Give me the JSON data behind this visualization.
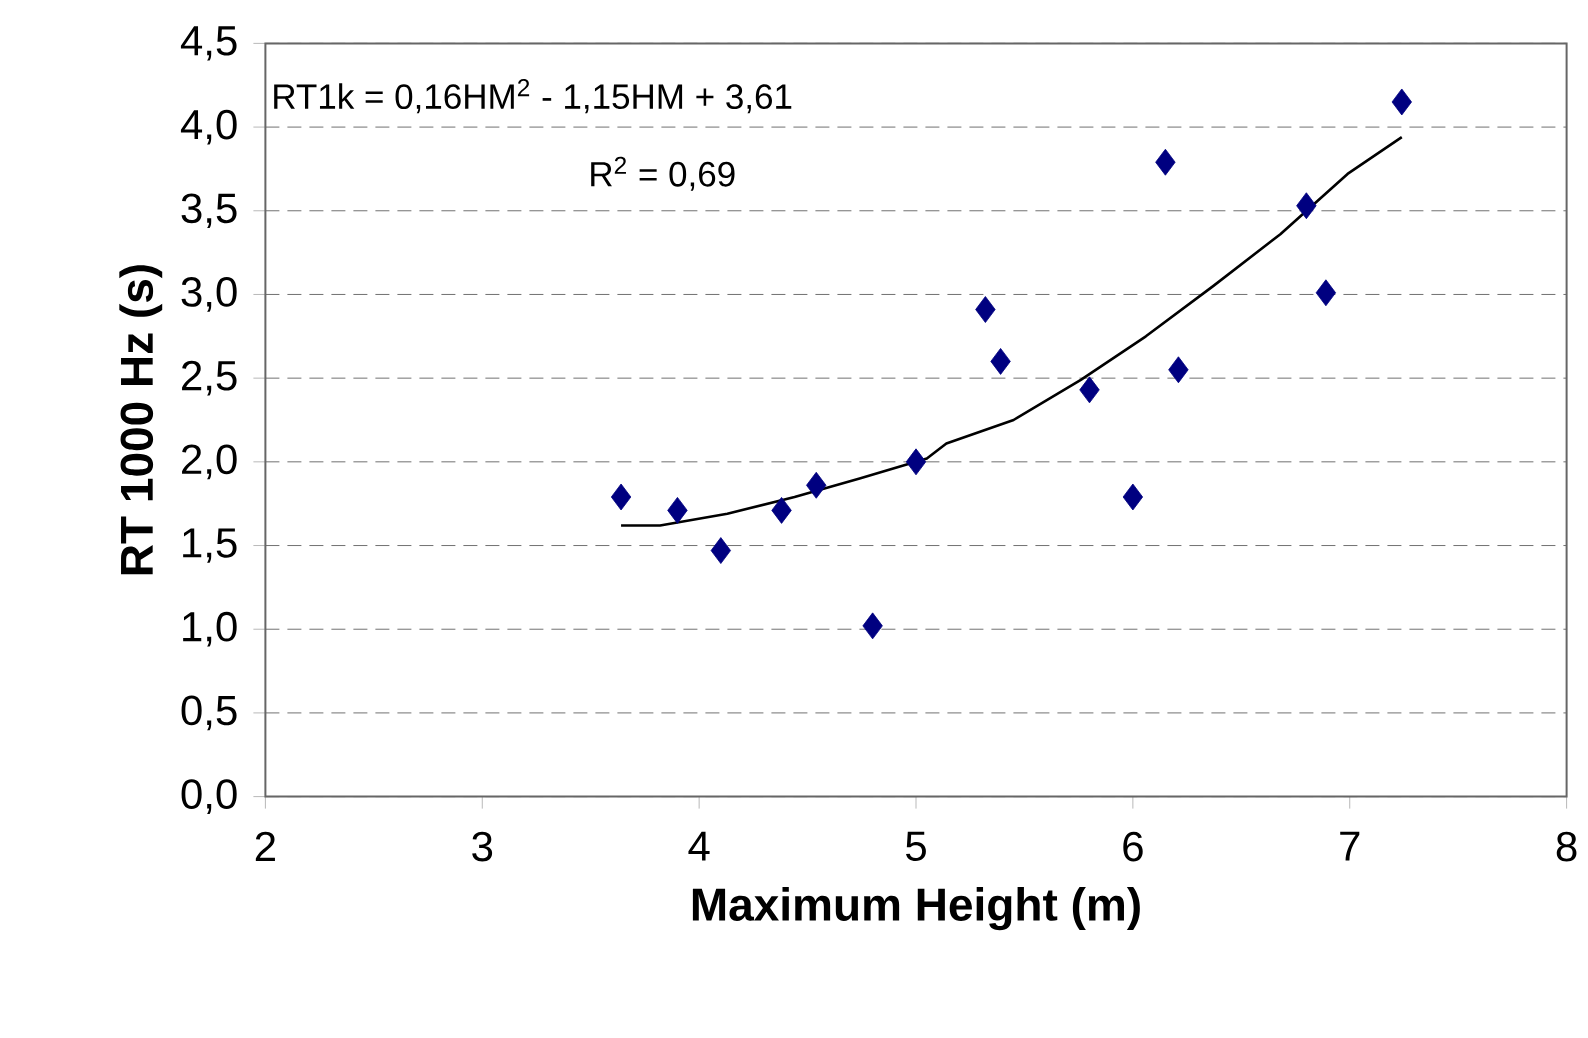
{
  "chart_data": {
    "type": "scatter",
    "xlabel": "Maximum Height (m)",
    "ylabel": "RT 1000 Hz (s)",
    "xlim": [
      2,
      8
    ],
    "xticks": [
      2,
      3,
      4,
      5,
      6,
      7,
      8
    ],
    "ylim": [
      0,
      4.5
    ],
    "yticks": [
      {
        "value": 0,
        "label": "0,0"
      },
      {
        "value": 0.5,
        "label": "0,5"
      },
      {
        "value": 1,
        "label": "1,0"
      },
      {
        "value": 1.5,
        "label": "1,5"
      },
      {
        "value": 2,
        "label": "2,0"
      },
      {
        "value": 2.5,
        "label": "2,5"
      },
      {
        "value": 3,
        "label": "3,0"
      },
      {
        "value": 3.5,
        "label": "3,5"
      },
      {
        "value": 4,
        "label": "4,0"
      },
      {
        "value": 4.5,
        "label": "4,5"
      }
    ],
    "grid": "y",
    "marker": "diamond",
    "annotations": [
      "RT1k = 0,16HM$^{2}$ - 1,15HM + 3,61",
      "R$^{2}$ = 0,69"
    ],
    "series": [
      {
        "color": "#000080",
        "x": [
          3.64,
          3.9,
          4.1,
          4.38,
          4.54,
          4.8,
          5.0,
          5.32,
          5.39,
          5.8,
          6.0,
          6.15,
          6.21,
          6.8,
          6.89,
          7.24
        ],
        "values": [
          1.79,
          1.71,
          1.47,
          1.71,
          1.86,
          1.02,
          2.0,
          2.91,
          2.6,
          2.43,
          1.79,
          3.79,
          2.55,
          3.53,
          3.01,
          4.15
        ]
      },
      {
        "type": "line",
        "color": "#000000",
        "marker": "none",
        "line_style": "solid",
        "x": [
          3.64,
          3.82,
          4.13,
          4.44,
          4.74,
          5.05,
          5.14,
          5.45,
          5.76,
          6.06,
          6.37,
          6.68,
          6.99,
          7.24
        ],
        "values": [
          1.62,
          1.62,
          1.69,
          1.79,
          1.9,
          2.02,
          2.11,
          2.25,
          2.49,
          2.75,
          3.05,
          3.36,
          3.72,
          3.94
        ]
      }
    ]
  }
}
